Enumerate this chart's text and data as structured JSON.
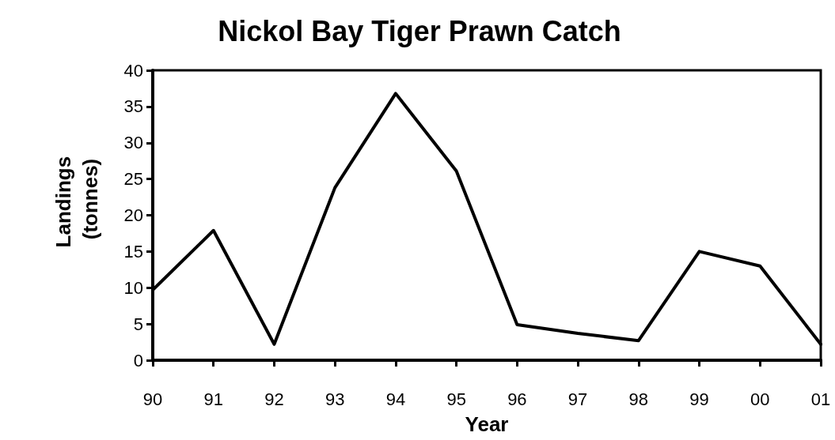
{
  "chart_data": {
    "type": "line",
    "title": "Nickol Bay Tiger Prawn Catch",
    "xlabel": "Year",
    "ylabel": "Landings (tonnes)",
    "categories": [
      "90",
      "91",
      "92",
      "93",
      "94",
      "95",
      "96",
      "97",
      "98",
      "99",
      "00",
      "01"
    ],
    "series": [
      {
        "color": "#000000",
        "values": [
          9.7,
          17.9,
          2.2,
          23.8,
          36.8,
          26.1,
          4.9,
          3.7,
          2.7,
          15.0,
          13.0,
          2.2
        ]
      }
    ],
    "ylim": [
      0,
      40
    ],
    "yticks": [
      0,
      5,
      10,
      15,
      20,
      25,
      30,
      35,
      40
    ],
    "grid": false,
    "marker": "none",
    "line_style": "solid"
  }
}
